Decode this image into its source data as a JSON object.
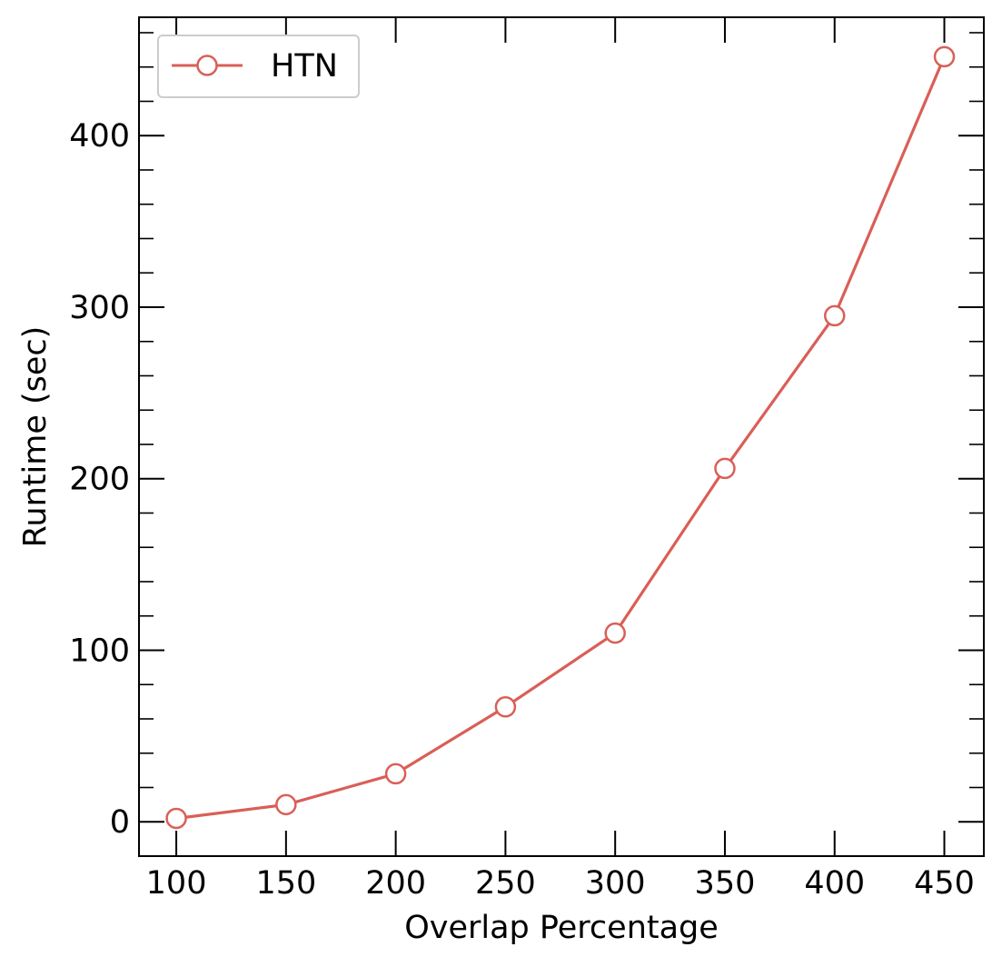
{
  "chart_data": {
    "type": "line",
    "title": "",
    "xlabel": "Overlap Percentage",
    "ylabel": "Runtime (sec)",
    "xlim": [
      83,
      468
    ],
    "ylim": [
      -20,
      469
    ],
    "xticks": [
      100,
      150,
      200,
      250,
      300,
      350,
      400,
      450
    ],
    "xtick_labels": [
      "100",
      "150",
      "200",
      "250",
      "300",
      "350",
      "400",
      "450"
    ],
    "yticks": [
      0,
      100,
      200,
      300,
      400
    ],
    "ytick_labels": [
      "0",
      "100",
      "200",
      "300",
      "400"
    ],
    "y_minor_step": 20,
    "tick_direction": "in",
    "ticks_on_all_sides": true,
    "grid": false,
    "legend_position": "top-left",
    "x": [
      100,
      150,
      200,
      250,
      300,
      350,
      400,
      450
    ],
    "series": [
      {
        "name": "HTN",
        "color": "#d95f57",
        "marker": "open-circle",
        "values": [
          2,
          10,
          28,
          67,
          110,
          206,
          295,
          446
        ]
      }
    ]
  }
}
